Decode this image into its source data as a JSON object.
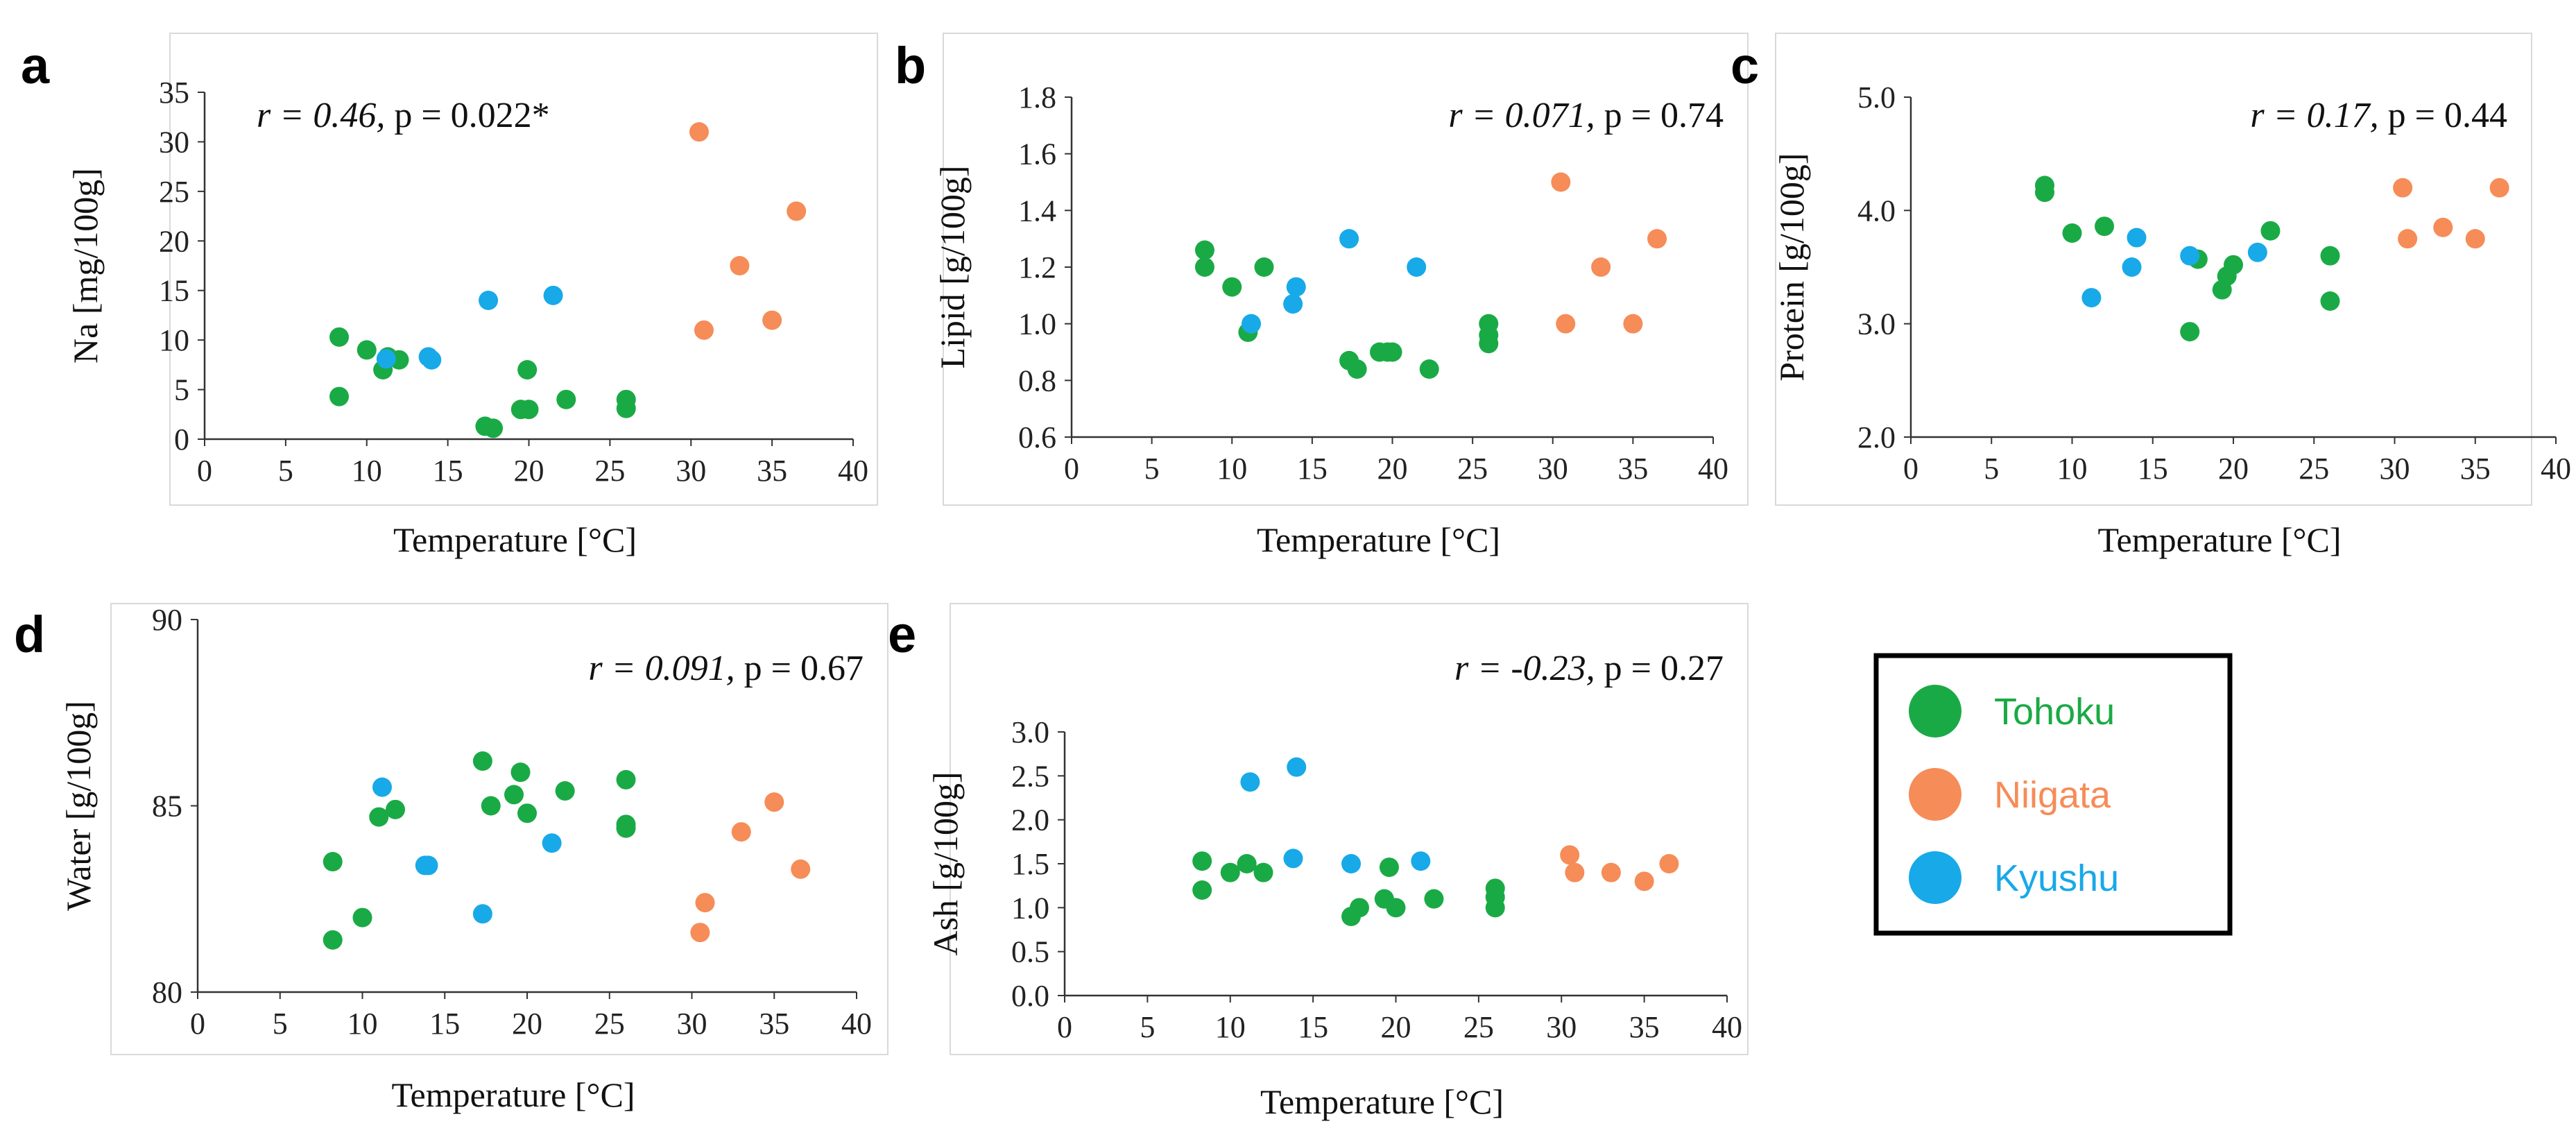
{
  "colors": {
    "Tohoku": "#1aaa45",
    "Niigata": "#f68c57",
    "Kyushu": "#18a9e8"
  },
  "legend": {
    "items": [
      {
        "label": "Tohoku",
        "color": "#1aaa45"
      },
      {
        "label": "Niigata",
        "color": "#f68c57"
      },
      {
        "label": "Kyushu",
        "color": "#18a9e8"
      }
    ]
  },
  "chart_data": [
    {
      "panel": "a",
      "type": "scatter",
      "xlabel": "Temperature [°C]",
      "ylabel": "Na [mg/100g]",
      "xlim": [
        0,
        40
      ],
      "ylim": [
        0,
        35
      ],
      "xticks": [
        "0",
        "5",
        "10",
        "15",
        "20",
        "25",
        "30",
        "35",
        "40"
      ],
      "yticks": [
        "0",
        "5",
        "10",
        "15",
        "20",
        "25",
        "30",
        "35"
      ],
      "annotation": {
        "r": "r = 0.46,",
        "p": "p = 0.022*"
      },
      "annotation_pos": "top-left",
      "series": [
        {
          "name": "Tohoku",
          "points": [
            [
              8.3,
              10.3
            ],
            [
              8.3,
              4.3
            ],
            [
              10,
              9
            ],
            [
              11,
              7
            ],
            [
              11.3,
              8.3
            ],
            [
              12,
              8
            ],
            [
              17.3,
              1.3
            ],
            [
              17.8,
              1.1
            ],
            [
              19.5,
              3
            ],
            [
              20,
              3
            ],
            [
              19.9,
              7
            ],
            [
              22.3,
              4
            ],
            [
              26,
              3.1
            ],
            [
              26,
              4
            ]
          ]
        },
        {
          "name": "Niigata",
          "points": [
            [
              30.5,
              31
            ],
            [
              30.8,
              11
            ],
            [
              33,
              17.5
            ],
            [
              35,
              12
            ],
            [
              36.5,
              23
            ]
          ]
        },
        {
          "name": "Kyushu",
          "points": [
            [
              11.2,
              8.1
            ],
            [
              13.8,
              8.3
            ],
            [
              14,
              8
            ],
            [
              17.5,
              14
            ],
            [
              21.5,
              14.5
            ]
          ]
        }
      ]
    },
    {
      "panel": "b",
      "type": "scatter",
      "xlabel": "Temperature [°C]",
      "ylabel": "Lipid [g/100g]",
      "xlim": [
        0,
        40
      ],
      "ylim": [
        0.6,
        1.8
      ],
      "xticks": [
        "0",
        "5",
        "10",
        "15",
        "20",
        "25",
        "30",
        "35",
        "40"
      ],
      "yticks": [
        "0.6",
        "0.8",
        "1.0",
        "1.2",
        "1.4",
        "1.6",
        "1.8"
      ],
      "annotation": {
        "r": "r = 0.071,",
        "p": "p = 0.74"
      },
      "annotation_pos": "top-right",
      "series": [
        {
          "name": "Tohoku",
          "points": [
            [
              8.3,
              1.26
            ],
            [
              8.3,
              1.2
            ],
            [
              10,
              1.13
            ],
            [
              11,
              0.97
            ],
            [
              12,
              1.2
            ],
            [
              17.3,
              0.87
            ],
            [
              17.8,
              0.84
            ],
            [
              19.2,
              0.9
            ],
            [
              19.7,
              0.9
            ],
            [
              20,
              0.9
            ],
            [
              22.3,
              0.84
            ],
            [
              26,
              1.0
            ],
            [
              26,
              0.96
            ],
            [
              26,
              0.93
            ]
          ]
        },
        {
          "name": "Niigata",
          "points": [
            [
              30.5,
              1.5
            ],
            [
              30.8,
              1.0
            ],
            [
              33,
              1.2
            ],
            [
              35,
              1.0
            ],
            [
              36.5,
              1.3
            ]
          ]
        },
        {
          "name": "Kyushu",
          "points": [
            [
              11.2,
              1.0
            ],
            [
              13.8,
              1.07
            ],
            [
              14,
              1.13
            ],
            [
              17.3,
              1.3
            ],
            [
              21.5,
              1.2
            ]
          ]
        }
      ]
    },
    {
      "panel": "c",
      "type": "scatter",
      "xlabel": "Temperature [°C]",
      "ylabel": "Protein [g/100g]",
      "xlim": [
        0,
        40
      ],
      "ylim": [
        2.0,
        5.0
      ],
      "xticks": [
        "0",
        "5",
        "10",
        "15",
        "20",
        "25",
        "30",
        "35",
        "40"
      ],
      "yticks": [
        "2.0",
        "3.0",
        "4.0",
        "5.0"
      ],
      "annotation": {
        "r": "r = 0.17,",
        "p": "p = 0.44"
      },
      "annotation_pos": "top-right",
      "series": [
        {
          "name": "Tohoku",
          "points": [
            [
              8.3,
              4.22
            ],
            [
              8.3,
              4.16
            ],
            [
              10,
              3.8
            ],
            [
              12,
              3.86
            ],
            [
              17.3,
              2.93
            ],
            [
              17.8,
              3.57
            ],
            [
              19.3,
              3.3
            ],
            [
              19.6,
              3.42
            ],
            [
              20,
              3.52
            ],
            [
              22.3,
              3.82
            ],
            [
              26,
              3.6
            ],
            [
              26,
              3.2
            ]
          ]
        },
        {
          "name": "Niigata",
          "points": [
            [
              30.5,
              4.2
            ],
            [
              30.8,
              3.75
            ],
            [
              33,
              3.85
            ],
            [
              35,
              3.75
            ],
            [
              36.5,
              4.2
            ]
          ]
        },
        {
          "name": "Kyushu",
          "points": [
            [
              11.2,
              3.23
            ],
            [
              13.7,
              3.5
            ],
            [
              14,
              3.76
            ],
            [
              17.3,
              3.6
            ],
            [
              21.5,
              3.63
            ]
          ]
        }
      ]
    },
    {
      "panel": "d",
      "type": "scatter",
      "xlabel": "Temperature [°C]",
      "ylabel": "Water [g/100g]",
      "xlim": [
        0,
        40
      ],
      "ylim": [
        80,
        90
      ],
      "xticks": [
        "0",
        "5",
        "10",
        "15",
        "20",
        "25",
        "30",
        "35",
        "40"
      ],
      "yticks": [
        "80",
        "85",
        "90"
      ],
      "annotation": {
        "r": "r = 0.091,",
        "p": "p = 0.67"
      },
      "annotation_pos": "top-right",
      "series": [
        {
          "name": "Tohoku",
          "points": [
            [
              8.2,
              83.5
            ],
            [
              8.2,
              81.4
            ],
            [
              10,
              82
            ],
            [
              11,
              84.7
            ],
            [
              12,
              84.9
            ],
            [
              17.3,
              86.2
            ],
            [
              17.8,
              85
            ],
            [
              19.2,
              85.3
            ],
            [
              19.6,
              85.9
            ],
            [
              20,
              84.8
            ],
            [
              22.3,
              85.4
            ],
            [
              26,
              85.7
            ],
            [
              26,
              84.4
            ],
            [
              26,
              84.5
            ]
          ]
        },
        {
          "name": "Niigata",
          "points": [
            [
              30.5,
              81.6
            ],
            [
              30.8,
              82.4
            ],
            [
              33,
              84.3
            ],
            [
              35,
              85.1
            ],
            [
              36.6,
              83.3
            ]
          ]
        },
        {
          "name": "Kyushu",
          "points": [
            [
              11.2,
              85.5
            ],
            [
              13.8,
              83.4
            ],
            [
              14,
              83.4
            ],
            [
              17.3,
              82.1
            ],
            [
              21.5,
              84
            ]
          ]
        }
      ]
    },
    {
      "panel": "e",
      "type": "scatter",
      "xlabel": "Temperature [°C]",
      "ylabel": "Ash [g/100g]",
      "xlim": [
        0,
        40
      ],
      "ylim": [
        0,
        3.0
      ],
      "xticks": [
        "0",
        "5",
        "10",
        "15",
        "20",
        "25",
        "30",
        "35",
        "40"
      ],
      "yticks": [
        "0.0",
        "0.5",
        "1.0",
        "1.5",
        "2.0",
        "2.5",
        "3.0"
      ],
      "annotation": {
        "r": "r = -0.23,",
        "p": "p = 0.27"
      },
      "annotation_pos": "top-right",
      "series": [
        {
          "name": "Tohoku",
          "points": [
            [
              8.3,
              1.53
            ],
            [
              8.3,
              1.2
            ],
            [
              10,
              1.4
            ],
            [
              11,
              1.5
            ],
            [
              12,
              1.4
            ],
            [
              17.3,
              0.9
            ],
            [
              17.8,
              1.0
            ],
            [
              19.3,
              1.1
            ],
            [
              19.6,
              1.46
            ],
            [
              20,
              1.0
            ],
            [
              22.3,
              1.1
            ],
            [
              26,
              1.22
            ],
            [
              26,
              1.12
            ],
            [
              26,
              1.0
            ]
          ]
        },
        {
          "name": "Niigata",
          "points": [
            [
              30.5,
              1.6
            ],
            [
              30.8,
              1.4
            ],
            [
              33,
              1.4
            ],
            [
              35,
              1.3
            ],
            [
              36.5,
              1.5
            ]
          ]
        },
        {
          "name": "Kyushu",
          "points": [
            [
              11.2,
              2.43
            ],
            [
              14,
              2.6
            ],
            [
              13.8,
              1.56
            ],
            [
              17.3,
              1.5
            ],
            [
              21.5,
              1.53
            ]
          ]
        }
      ]
    }
  ]
}
